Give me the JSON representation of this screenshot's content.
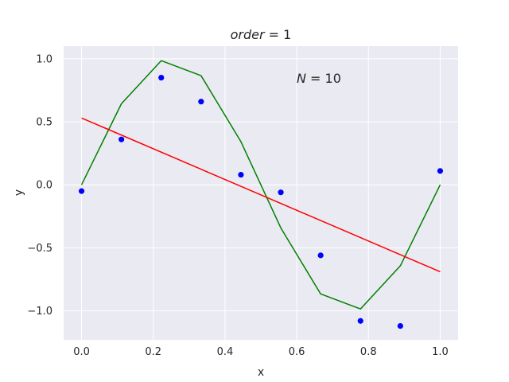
{
  "chart_data": {
    "type": "line",
    "title_var": "order",
    "title_eq": " = 1",
    "annotation_var": "N",
    "annotation_eq": " = 10",
    "xlabel": "x",
    "ylabel": "y",
    "xlim": [
      -0.05,
      1.05
    ],
    "ylim": [
      -1.23,
      1.1
    ],
    "xticks": [
      0.0,
      0.2,
      0.4,
      0.6,
      0.8,
      1.0
    ],
    "xtick_labels": [
      "0.0",
      "0.2",
      "0.4",
      "0.6",
      "0.8",
      "1.0"
    ],
    "yticks": [
      -1.0,
      -0.5,
      0.0,
      0.5,
      1.0
    ],
    "ytick_labels": [
      "−1.0",
      "−0.5",
      "0.0",
      "0.5",
      "1.0"
    ],
    "grid": true,
    "background": "#eaeaf2",
    "series": [
      {
        "kind": "line",
        "color": "#008000",
        "x": [
          0.0,
          0.1111,
          0.2222,
          0.3333,
          0.4444,
          0.5556,
          0.6667,
          0.7778,
          0.8889,
          1.0
        ],
        "y": [
          0.0,
          0.643,
          0.985,
          0.866,
          0.342,
          -0.342,
          -0.866,
          -0.985,
          -0.643,
          0.0
        ]
      },
      {
        "kind": "line",
        "color": "#ff0000",
        "x": [
          0.0,
          1.0
        ],
        "y": [
          0.53,
          -0.69
        ]
      },
      {
        "kind": "scatter",
        "color": "#0000ff",
        "x": [
          0.0,
          0.1111,
          0.2222,
          0.3333,
          0.4444,
          0.5556,
          0.6667,
          0.7778,
          0.8889,
          1.0
        ],
        "y": [
          -0.05,
          0.36,
          0.85,
          0.66,
          0.08,
          -0.06,
          -0.56,
          -1.08,
          -1.12,
          0.11
        ]
      }
    ]
  }
}
